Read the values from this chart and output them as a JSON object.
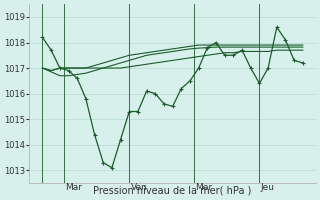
{
  "title": "",
  "xlabel": "Pression niveau de la mer( hPa )",
  "ylabel": "",
  "bg_color": "#d8f0ec",
  "grid_color": "#b8d8d4",
  "line_color": "#1a5c2a",
  "ylim": [
    1012.5,
    1019.5
  ],
  "yticks": [
    1013,
    1014,
    1015,
    1016,
    1017,
    1018,
    1019
  ],
  "day_labels": [
    "Mar",
    "Ven",
    "Mer",
    "Jeu"
  ],
  "day_positions": [
    0.083,
    0.333,
    0.583,
    0.833
  ],
  "series1": [
    1018.2,
    1017.7,
    1017.0,
    1016.9,
    1016.6,
    1015.8,
    1014.4,
    1013.3,
    1013.1,
    1014.2,
    1015.3,
    1015.3,
    1016.1,
    1016.0,
    1015.6,
    1015.5,
    1016.2,
    1016.5,
    1017.0,
    1017.8,
    1018.0,
    1017.5,
    1017.5,
    1017.7,
    1017.0,
    1016.4,
    1017.0,
    1018.6,
    1018.1,
    1017.3,
    1017.2
  ],
  "series2": [
    1017.0,
    1016.9,
    1017.0,
    1017.0,
    1017.0,
    1017.0,
    1017.0,
    1017.0,
    1017.0,
    1017.0,
    1017.05,
    1017.1,
    1017.15,
    1017.2,
    1017.25,
    1017.3,
    1017.35,
    1017.4,
    1017.45,
    1017.5,
    1017.55,
    1017.6,
    1017.6,
    1017.65,
    1017.65,
    1017.65,
    1017.65,
    1017.7,
    1017.7,
    1017.7,
    1017.7
  ],
  "series3": [
    1017.0,
    1016.9,
    1017.0,
    1017.0,
    1017.0,
    1017.0,
    1017.1,
    1017.2,
    1017.3,
    1017.4,
    1017.5,
    1017.55,
    1017.6,
    1017.65,
    1017.7,
    1017.75,
    1017.8,
    1017.85,
    1017.9,
    1017.9,
    1017.9,
    1017.9,
    1017.9,
    1017.9,
    1017.9,
    1017.9,
    1017.9,
    1017.9,
    1017.9,
    1017.9,
    1017.9
  ],
  "series4": [
    1017.0,
    1016.85,
    1016.7,
    1016.7,
    1016.75,
    1016.8,
    1016.9,
    1017.0,
    1017.1,
    1017.2,
    1017.3,
    1017.4,
    1017.5,
    1017.55,
    1017.6,
    1017.65,
    1017.7,
    1017.75,
    1017.78,
    1017.8,
    1017.82,
    1017.82,
    1017.82,
    1017.82,
    1017.82,
    1017.82,
    1017.82,
    1017.82,
    1017.82,
    1017.82,
    1017.82
  ]
}
